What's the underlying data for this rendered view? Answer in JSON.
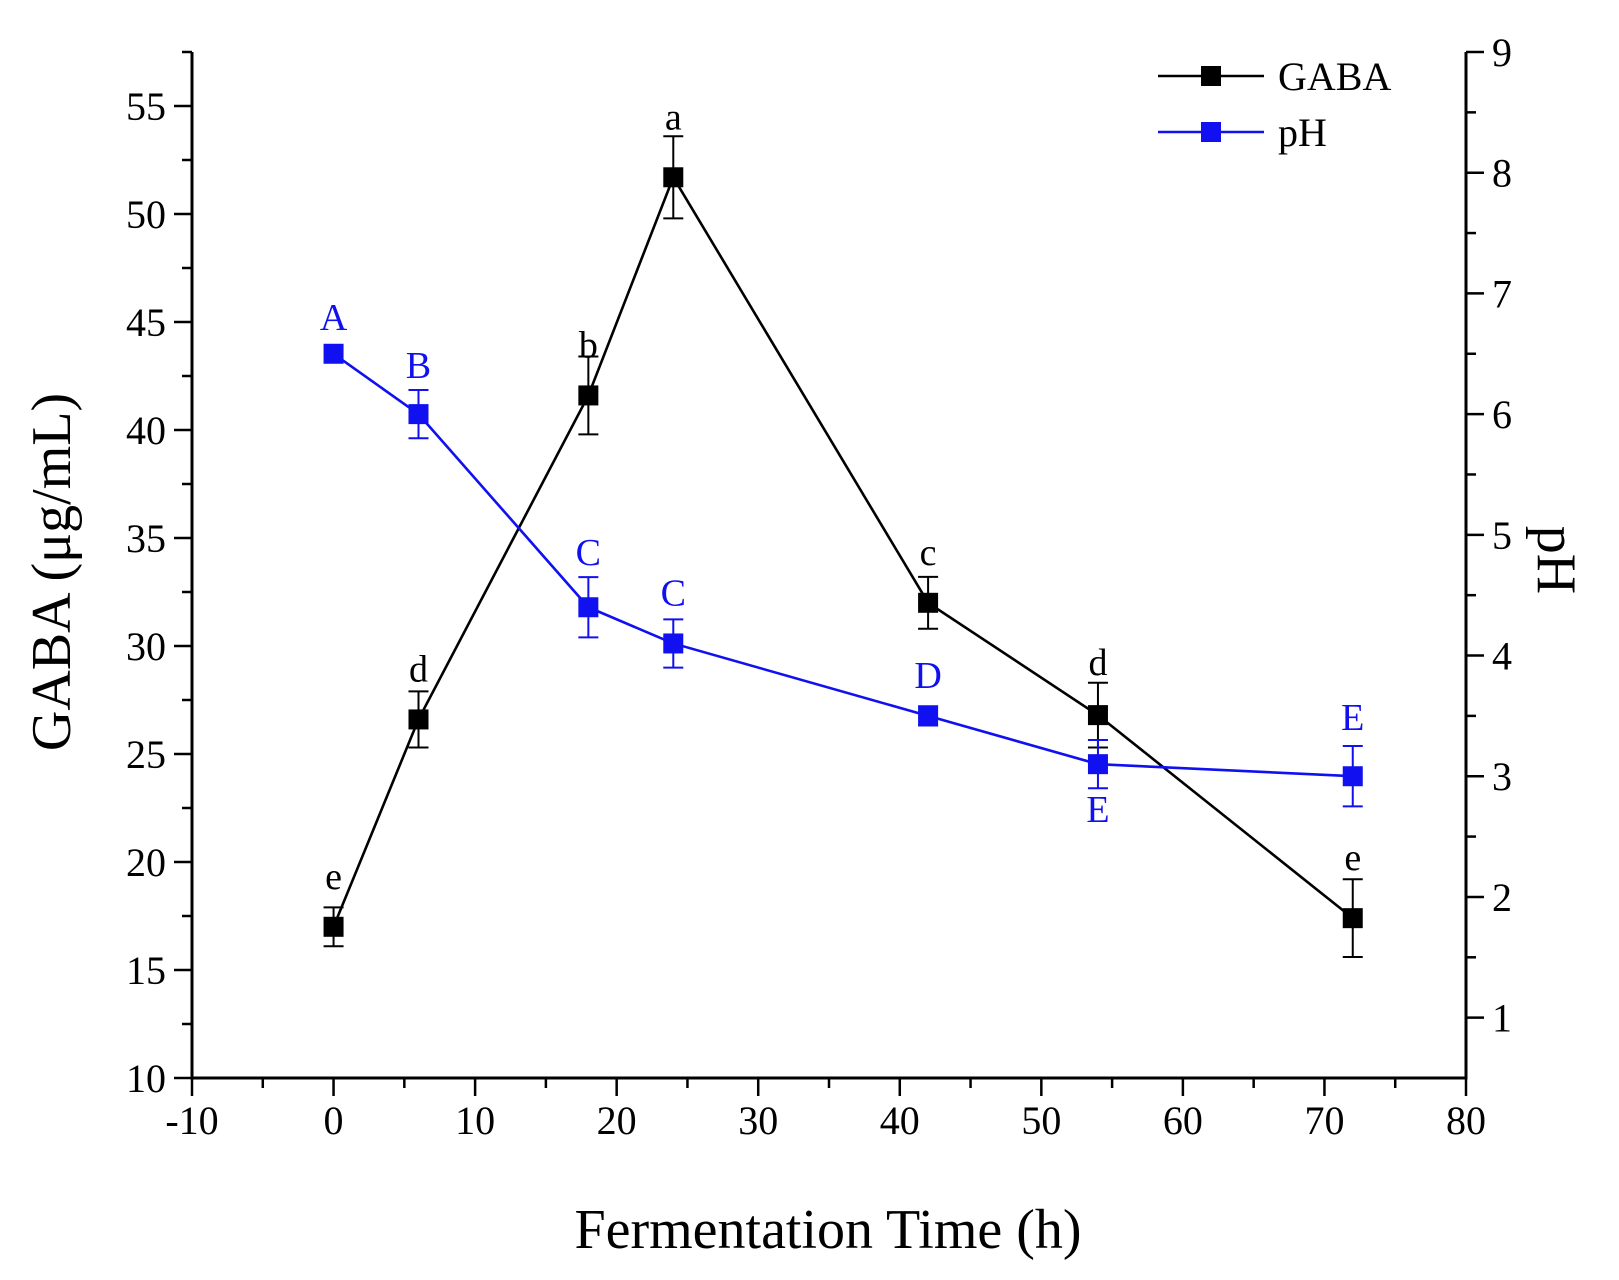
{
  "chart_data": {
    "type": "line",
    "xlabel": "Fermentation Time (h)",
    "ylabel": "GABA (μg/mL)",
    "y2label": "pH",
    "xlim": [
      -10,
      80
    ],
    "ylim": [
      10,
      57.5
    ],
    "y2lim": [
      0.5,
      9
    ],
    "xticks": [
      "-10",
      "0",
      "10",
      "20",
      "30",
      "40",
      "50",
      "60",
      "70",
      "80"
    ],
    "yticks": [
      "10",
      "15",
      "20",
      "25",
      "30",
      "35",
      "40",
      "45",
      "50",
      "55"
    ],
    "y2ticks": [
      "1",
      "2",
      "3",
      "4",
      "5",
      "6",
      "7",
      "8",
      "9"
    ],
    "legend_position": "top-right",
    "series": [
      {
        "name": "GABA",
        "axis": "left",
        "color": "#000000",
        "x": [
          0,
          6,
          18,
          24,
          42,
          54,
          72
        ],
        "values": [
          17.0,
          26.6,
          41.6,
          51.7,
          32.0,
          26.8,
          17.4
        ],
        "errors": [
          0.9,
          1.3,
          1.8,
          1.9,
          1.2,
          1.5,
          1.8
        ],
        "labels": [
          "e",
          "d",
          "b",
          "a",
          "c",
          "d",
          "e"
        ]
      },
      {
        "name": "pH",
        "axis": "right",
        "color": "#1010F0",
        "x": [
          0,
          6,
          18,
          24,
          42,
          54,
          72
        ],
        "values": [
          6.5,
          6.0,
          4.4,
          4.1,
          3.5,
          3.1,
          3.0
        ],
        "errors": [
          0.0,
          0.2,
          0.25,
          0.2,
          0.08,
          0.2,
          0.25
        ],
        "labels": [
          "A",
          "B",
          "C",
          "C",
          "D",
          "E",
          "E"
        ]
      }
    ]
  }
}
